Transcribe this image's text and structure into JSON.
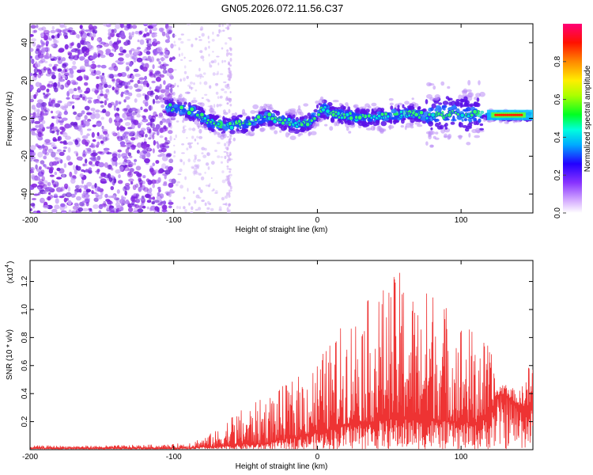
{
  "title": "GN05.2026.072.11.56.C37",
  "chart_data": [
    {
      "type": "heatmap",
      "name": "spectrogram",
      "xlabel": "Height of straight line (km)",
      "ylabel": "Frequency (Hz)",
      "xlim": [
        -200,
        150
      ],
      "ylim": [
        -50,
        50
      ],
      "xticks": [
        -200,
        -100,
        0,
        100
      ],
      "xtick_labels": [
        "-200",
        "-100",
        "0",
        "100"
      ],
      "yticks": [
        -40,
        -20,
        0,
        20,
        40
      ],
      "ytick_labels": [
        "-40",
        "-20",
        "0",
        "20",
        "40"
      ],
      "colorbar": {
        "label": "Normalized spectral amplitude",
        "range": [
          0,
          1
        ],
        "ticks": [
          0.0,
          0.2,
          0.4,
          0.6,
          0.8
        ],
        "tick_labels": [
          "0.0",
          "0.2",
          "0.4",
          "0.6",
          "0.8"
        ]
      },
      "ridge": {
        "x": [
          -105,
          -95,
          -85,
          -75,
          -65,
          -55,
          -45,
          -35,
          -25,
          -15,
          -5,
          0,
          5,
          10,
          15,
          25,
          35,
          45,
          55,
          65,
          75,
          85,
          95,
          105,
          115,
          125,
          135,
          148
        ],
        "frequency": [
          6,
          5,
          3,
          -2,
          -4,
          -3,
          -2,
          1,
          -1,
          -3,
          -2,
          3,
          5,
          3,
          2,
          1,
          0,
          1,
          2,
          3,
          1,
          2,
          3,
          2,
          2,
          1,
          1,
          1
        ]
      }
    },
    {
      "type": "line",
      "name": "snr",
      "xlabel": "Height of straight line (km)",
      "ylabel": "SNR (10 * v/v)",
      "y_multiplier": "(x10",
      "y_multiplier_exp": "4",
      "y_multiplier_close": ")",
      "xlim": [
        -200,
        150
      ],
      "ylim": [
        0,
        1.35
      ],
      "xticks": [
        -200,
        -100,
        0,
        100
      ],
      "xtick_labels": [
        "-200",
        "-100",
        "0",
        "100"
      ],
      "yticks": [
        0.2,
        0.4,
        0.6,
        0.8,
        1.0,
        1.2
      ],
      "ytick_labels": [
        "0.2",
        "0.4",
        "0.6",
        "0.8",
        "1.0",
        "1.2"
      ],
      "envelope": {
        "x": [
          -200,
          -150,
          -100,
          -90,
          -80,
          -70,
          -60,
          -50,
          -40,
          -30,
          -20,
          -10,
          0,
          10,
          20,
          30,
          40,
          50,
          60,
          70,
          80,
          90,
          100,
          110,
          120,
          125,
          130,
          140,
          150
        ],
        "peak": [
          0.03,
          0.03,
          0.04,
          0.06,
          0.09,
          0.14,
          0.26,
          0.3,
          0.36,
          0.42,
          0.48,
          0.56,
          0.66,
          0.78,
          0.95,
          1.05,
          1.1,
          1.22,
          1.3,
          1.1,
          1.2,
          1.05,
          0.95,
          0.85,
          0.75,
          0.45,
          0.5,
          0.4,
          0.7
        ],
        "floor": [
          0.01,
          0.01,
          0.01,
          0.01,
          0.02,
          0.02,
          0.03,
          0.04,
          0.04,
          0.06,
          0.08,
          0.1,
          0.12,
          0.15,
          0.18,
          0.2,
          0.2,
          0.22,
          0.22,
          0.22,
          0.22,
          0.2,
          0.2,
          0.18,
          0.25,
          0.38,
          0.4,
          0.32,
          0.3
        ]
      },
      "color": "#ee3333"
    }
  ]
}
